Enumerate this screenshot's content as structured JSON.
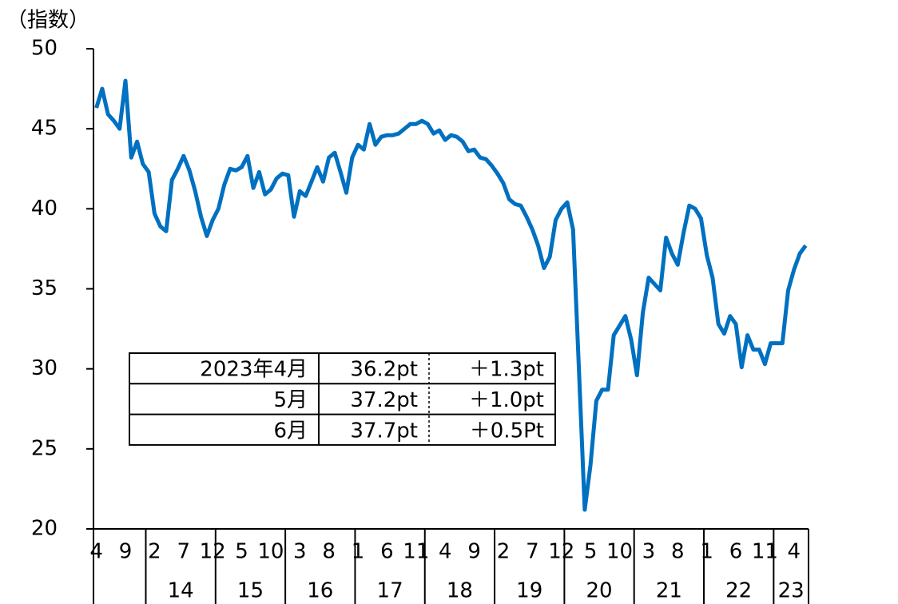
{
  "chart_data": {
    "type": "line",
    "y_label": "（指数）",
    "categories": [
      "4",
      null,
      null,
      null,
      null,
      "9",
      null,
      null,
      null,
      null,
      "2",
      null,
      null,
      null,
      null,
      "7",
      null,
      null,
      null,
      null,
      "12",
      null,
      null,
      null,
      null,
      "5",
      null,
      null,
      null,
      null,
      "10",
      null,
      null,
      null,
      null,
      "3",
      null,
      null,
      null,
      null,
      "8",
      null,
      null,
      null,
      null,
      "1",
      null,
      null,
      null,
      null,
      "6",
      null,
      null,
      null,
      null,
      "11",
      null,
      null,
      null,
      null,
      "4",
      null,
      null,
      null,
      null,
      "9",
      null,
      null,
      null,
      null,
      "2",
      null,
      null,
      null,
      null,
      "7",
      null,
      null,
      null,
      null,
      "12",
      null,
      null,
      null,
      null,
      "5",
      null,
      null,
      null,
      null,
      "10",
      null,
      null,
      null,
      null,
      "3",
      null,
      null,
      null,
      null,
      "8",
      null,
      null,
      null,
      null,
      "1",
      null,
      null,
      null,
      null,
      "6",
      null,
      null,
      null,
      null,
      "11",
      null,
      null,
      null,
      null,
      "4",
      null,
      null
    ],
    "years": [
      "14",
      "15",
      "16",
      "17",
      "18",
      "19",
      "20",
      "21",
      "22",
      "23"
    ],
    "series": [
      {
        "color": "#0070c0",
        "values": [
          46.3,
          47.5,
          45.9,
          45.5,
          45.0,
          48.0,
          43.2,
          44.2,
          42.8,
          42.3,
          39.7,
          38.9,
          38.6,
          41.8,
          42.5,
          43.3,
          42.4,
          41.1,
          39.5,
          38.3,
          39.3,
          40.0,
          41.5,
          42.5,
          42.4,
          42.6,
          43.3,
          41.3,
          42.3,
          40.9,
          41.2,
          41.9,
          42.2,
          42.1,
          39.5,
          41.1,
          40.8,
          41.7,
          42.6,
          41.7,
          43.2,
          43.5,
          42.3,
          41.0,
          43.2,
          44.0,
          43.7,
          45.3,
          44.0,
          44.5,
          44.6,
          44.6,
          44.7,
          45.0,
          45.3,
          45.3,
          45.5,
          45.3,
          44.7,
          44.9,
          44.3,
          44.6,
          44.5,
          44.2,
          43.6,
          43.7,
          43.2,
          43.1,
          42.7,
          42.2,
          41.6,
          40.6,
          40.3,
          40.2,
          39.5,
          38.7,
          37.7,
          36.3,
          37.0,
          39.3,
          40.0,
          40.4,
          38.7,
          30.0,
          21.2,
          24.0,
          28.0,
          28.7,
          28.7,
          32.1,
          32.7,
          33.3,
          31.8,
          29.6,
          33.5,
          35.7,
          35.3,
          34.9,
          38.2,
          37.2,
          36.5,
          38.5,
          40.2,
          40.0,
          39.4,
          37.1,
          35.7,
          32.8,
          32.2,
          33.3,
          32.8,
          30.1,
          32.1,
          31.2,
          31.2,
          30.3,
          31.6,
          31.6,
          31.6,
          34.9,
          36.2,
          37.2,
          37.7
        ]
      }
    ],
    "ylim": [
      20,
      50
    ],
    "yticks": [
      20,
      25,
      30,
      35,
      40,
      45,
      50
    ],
    "grid": false,
    "table": [
      [
        "2023年4月",
        "36.2pt",
        "＋1.3pt"
      ],
      [
        "5月",
        "37.2pt",
        "＋1.0pt"
      ],
      [
        "6月",
        "37.7pt",
        "＋0.5Pt"
      ]
    ]
  }
}
